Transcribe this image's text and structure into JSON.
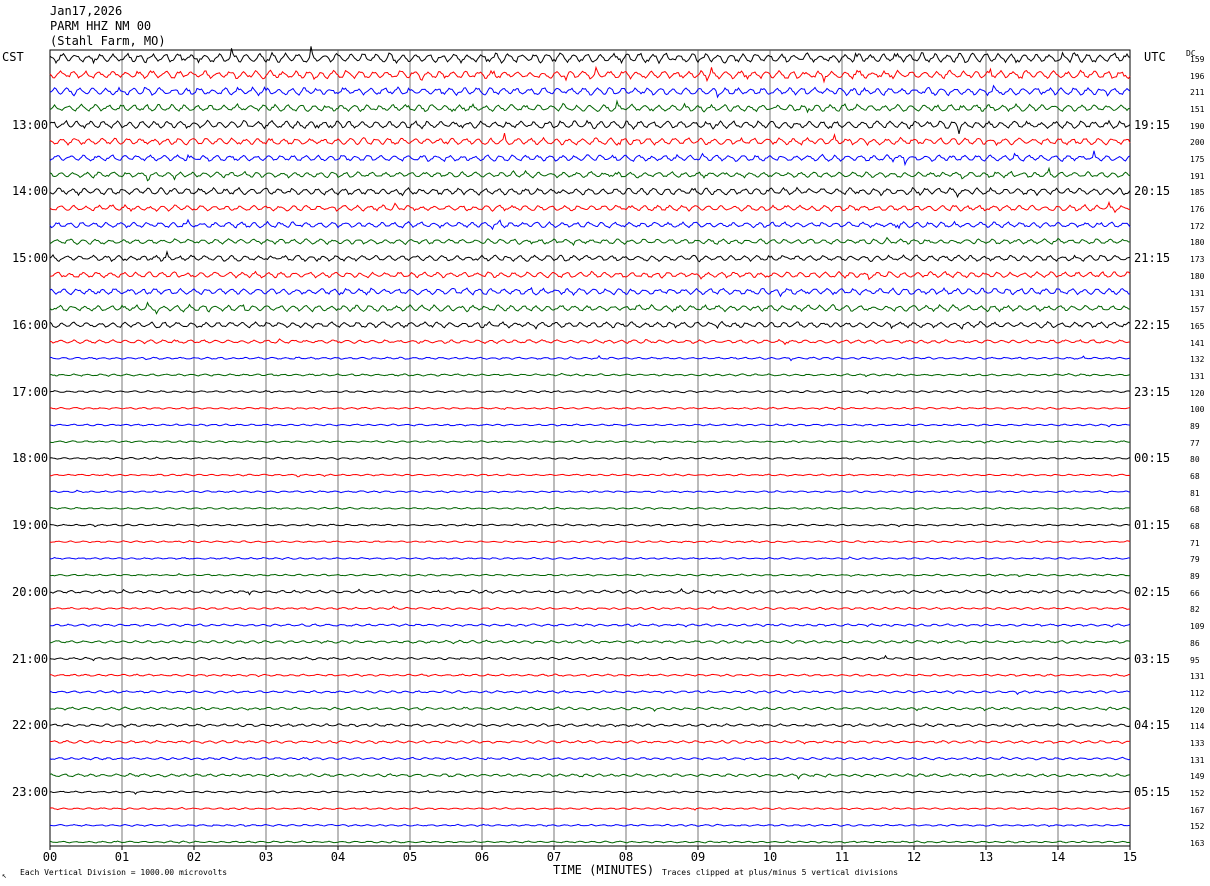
{
  "header": {
    "date": "Jan17,2026",
    "station": "PARM HHZ NM 00",
    "location": "(Stahl Farm, MO)"
  },
  "labels": {
    "left_tz": "CST",
    "right_tz": "UTC",
    "dc_header": "DC",
    "xlabel": "TIME (MINUTES)",
    "footnote_left": "Each Vertical Division = 1000.00 microvolts",
    "footnote_right": "Traces clipped at plus/minus 5 vertical divisions",
    "corner_mark": "↖"
  },
  "chart_data": {
    "type": "line",
    "x_ticks": [
      "00",
      "01",
      "02",
      "03",
      "04",
      "05",
      "06",
      "07",
      "08",
      "09",
      "10",
      "11",
      "12",
      "13",
      "14",
      "15"
    ],
    "xlim": [
      0,
      15
    ],
    "left_hour_labels": [
      "13:00",
      "14:00",
      "15:00",
      "16:00",
      "17:00",
      "18:00",
      "19:00",
      "20:00",
      "21:00",
      "22:00",
      "23:00"
    ],
    "right_hour_labels": [
      "19:15",
      "20:15",
      "21:15",
      "22:15",
      "23:15",
      "00:15",
      "01:15",
      "02:15",
      "03:15",
      "04:15",
      "05:15"
    ],
    "dc_offsets": [
      159,
      196,
      211,
      151,
      190,
      200,
      175,
      191,
      185,
      176,
      172,
      180,
      173,
      180,
      131,
      157,
      165,
      141,
      132,
      131,
      120,
      100,
      89,
      77,
      80,
      68,
      81,
      68,
      68,
      71,
      79,
      89,
      66,
      82,
      109,
      86,
      95,
      131,
      112,
      120,
      114,
      133,
      131,
      149,
      152,
      167,
      152,
      163
    ],
    "trace_colors": [
      "#000000",
      "#ff0000",
      "#0000ff",
      "#006400"
    ],
    "trace_amplitudes": [
      1.6,
      1.4,
      1.3,
      1.2,
      1.3,
      1.2,
      1.1,
      1.0,
      1.2,
      1.0,
      1.0,
      0.9,
      1.0,
      1.0,
      1.1,
      1.1,
      1.0,
      0.6,
      0.35,
      0.35,
      0.35,
      0.3,
      0.3,
      0.3,
      0.3,
      0.3,
      0.3,
      0.3,
      0.3,
      0.3,
      0.3,
      0.3,
      0.5,
      0.35,
      0.4,
      0.45,
      0.4,
      0.35,
      0.4,
      0.45,
      0.45,
      0.45,
      0.4,
      0.5,
      0.3,
      0.3,
      0.3,
      0.3
    ]
  }
}
